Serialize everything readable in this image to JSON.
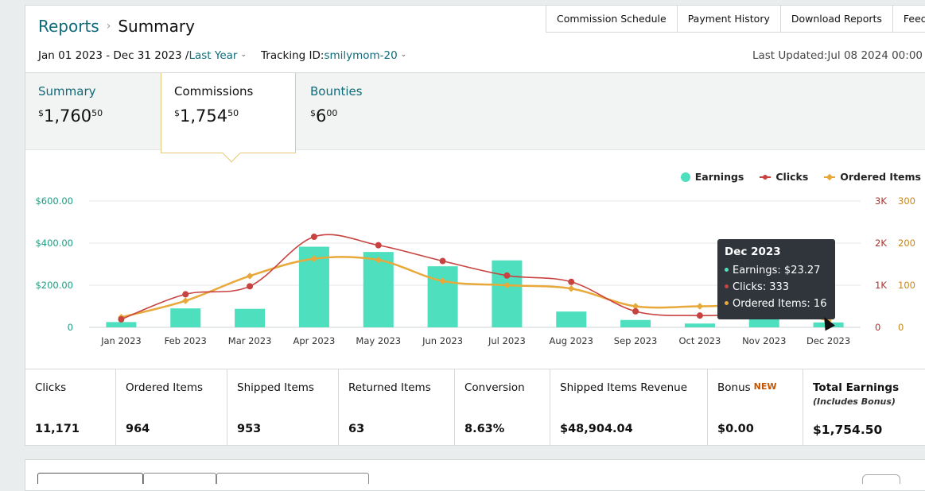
{
  "breadcrumb": {
    "parent": "Reports",
    "separator": "›",
    "current": "Summary"
  },
  "top_tabs": [
    "Commission Schedule",
    "Payment History",
    "Download Reports",
    "Feedback"
  ],
  "filters": {
    "date_range": "Jan 01 2023 - Dec 31 2023 /",
    "period": "Last Year",
    "tracking_label": "Tracking ID:",
    "tracking_id": "smilymom-20"
  },
  "last_updated": "Last Updated:Jul 08 2024 00:00",
  "summary_tabs": [
    {
      "label": "Summary",
      "currency": "$",
      "whole": "1,760",
      "cents": "50"
    },
    {
      "label": "Commissions",
      "currency": "$",
      "whole": "1,754",
      "cents": "50"
    },
    {
      "label": "Bounties",
      "currency": "$",
      "whole": "6",
      "cents": "00"
    }
  ],
  "legend": [
    "Earnings",
    "Clicks",
    "Ordered Items"
  ],
  "colors": {
    "earnings": "#4ddfbe",
    "clicks": "#c8423f",
    "ordered": "#e9a93a",
    "link": "#0e6b7a"
  },
  "chart_data": {
    "type": "bar",
    "categories": [
      "Jan 2023",
      "Feb 2023",
      "Mar 2023",
      "Apr 2023",
      "May 2023",
      "Jun 2023",
      "Jul 2023",
      "Aug 2023",
      "Sep 2023",
      "Oct 2023",
      "Nov 2023",
      "Dec 2023"
    ],
    "series": [
      {
        "name": "Earnings",
        "type": "bar",
        "axis": "left",
        "values": [
          25,
          90,
          88,
          383,
          358,
          290,
          318,
          75,
          35,
          18,
          38,
          23.27
        ]
      },
      {
        "name": "Clicks",
        "type": "line",
        "axis": "right-clicks",
        "values": [
          190,
          785,
          975,
          2150,
          1950,
          1575,
          1230,
          1080,
          380,
          280,
          320,
          333
        ]
      },
      {
        "name": "Ordered Items",
        "type": "line",
        "axis": "right-items",
        "values": [
          24,
          63,
          122,
          163,
          160,
          110,
          100,
          92,
          50,
          50,
          50,
          16
        ]
      }
    ],
    "y_left": {
      "ticks": [
        "0",
        "$200.00",
        "$400.00",
        "$600.00"
      ],
      "range": [
        0,
        600
      ]
    },
    "y_right_clicks": {
      "ticks": [
        "0",
        "1K",
        "2K",
        "3K"
      ],
      "range": [
        0,
        3000
      ]
    },
    "y_right_items": {
      "ticks": [
        "0",
        "100",
        "200",
        "300"
      ],
      "range": [
        0,
        300
      ]
    },
    "grid": true,
    "legend_position": "top-right"
  },
  "tooltip": {
    "title": "Dec 2023",
    "earnings": "Earnings: $23.27",
    "clicks": "Clicks: 333",
    "ordered": "Ordered Items: 16"
  },
  "metrics": [
    {
      "label": "Clicks",
      "value": "11,171"
    },
    {
      "label": "Ordered Items",
      "value": "964"
    },
    {
      "label": "Shipped Items",
      "value": "953"
    },
    {
      "label": "Returned Items",
      "value": "63"
    },
    {
      "label": "Conversion",
      "value": "8.63%"
    },
    {
      "label": "Shipped Items Revenue",
      "value": "$48,904.04"
    },
    {
      "label": "Bonus",
      "badge": "NEW",
      "value": "$0.00"
    },
    {
      "label": "Total Earnings",
      "sublabel": "(Includes Bonus)",
      "value": "$1,754.50"
    }
  ]
}
